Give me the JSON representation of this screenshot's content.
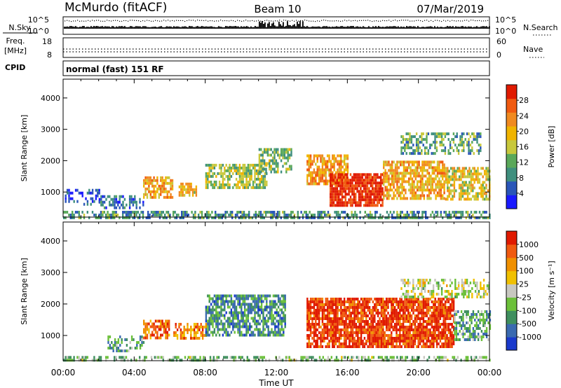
{
  "header": {
    "station": "McMurdo (fitACF)",
    "beam": "Beam 10",
    "date": "07/Mar/2019"
  },
  "status_panel": {
    "nsky_label": "N.Sky",
    "nsky_ticks": [
      "10^5",
      "10^0"
    ],
    "nsearch_label": "N.Search",
    "nsearch_ticks": [
      "10^5",
      "10^0"
    ],
    "freq_label_line1": "Freq.",
    "freq_label_line2": "[MHz]",
    "freq_ticks": [
      "18",
      "8"
    ],
    "nave_label": "Nave",
    "nave_ticks": [
      "60",
      "0"
    ],
    "cpid_label": "CPID",
    "cpid_text": "normal (fast) 151 RF"
  },
  "chart_data": [
    {
      "type": "heatmap",
      "panel": "power",
      "ylabel": "Slant Range [km]",
      "ylim": [
        200,
        4600
      ],
      "yticks": [
        "1000",
        "2000",
        "3000",
        "4000"
      ],
      "x_ticks": [
        "00:00",
        "04:00",
        "08:00",
        "12:00",
        "16:00",
        "20:00",
        "00:00"
      ],
      "colorbar_label": "Power [dB]",
      "colorbar_ticks": [
        "4",
        "8",
        "12",
        "16",
        "20",
        "24",
        "28"
      ],
      "colorscale": [
        "#1a1aff",
        "#2a56b8",
        "#3f8f7e",
        "#5aa85a",
        "#c8c83c",
        "#f0b400",
        "#f08a20",
        "#f05a10",
        "#e01a00"
      ],
      "regions": [
        {
          "t0": 0.0,
          "t1": 24.0,
          "r0": 200,
          "r1": 400,
          "level": 0.3,
          "density": 0.6
        },
        {
          "t0": 0.1,
          "t1": 2.0,
          "r0": 600,
          "r1": 1100,
          "level": 0.15,
          "density": 0.4
        },
        {
          "t0": 2.0,
          "t1": 4.5,
          "r0": 500,
          "r1": 900,
          "level": 0.2,
          "density": 0.5
        },
        {
          "t0": 4.5,
          "t1": 6.2,
          "r0": 800,
          "r1": 1500,
          "level": 0.65,
          "density": 0.75
        },
        {
          "t0": 6.5,
          "t1": 7.5,
          "r0": 900,
          "r1": 1300,
          "level": 0.6,
          "density": 0.7
        },
        {
          "t0": 8.0,
          "t1": 11.5,
          "r0": 1100,
          "r1": 1900,
          "level": 0.45,
          "density": 0.7
        },
        {
          "t0": 11.0,
          "t1": 12.8,
          "r0": 1600,
          "r1": 2400,
          "level": 0.4,
          "density": 0.6
        },
        {
          "t0": 13.7,
          "t1": 16.0,
          "r0": 1300,
          "r1": 2200,
          "level": 0.7,
          "density": 0.8
        },
        {
          "t0": 15.0,
          "t1": 18.0,
          "r0": 600,
          "r1": 1600,
          "level": 0.95,
          "density": 0.85
        },
        {
          "t0": 18.0,
          "t1": 21.5,
          "r0": 800,
          "r1": 2000,
          "level": 0.65,
          "density": 0.75
        },
        {
          "t0": 19.0,
          "t1": 23.5,
          "r0": 2200,
          "r1": 2900,
          "level": 0.35,
          "density": 0.5
        },
        {
          "t0": 21.5,
          "t1": 24.0,
          "r0": 800,
          "r1": 1800,
          "level": 0.55,
          "density": 0.65
        }
      ]
    },
    {
      "type": "heatmap",
      "panel": "velocity",
      "ylabel": "Slant Range [km]",
      "ylim": [
        200,
        4600
      ],
      "yticks": [
        "1000",
        "2000",
        "3000",
        "4000"
      ],
      "x_ticks": [
        "00:00",
        "04:00",
        "08:00",
        "12:00",
        "16:00",
        "20:00",
        "00:00"
      ],
      "xlabel": "Time UT",
      "colorbar_label": "Velocity [m s^-1]",
      "colorbar_ticks": [
        "1000",
        "500",
        "100",
        "25",
        "-25",
        "-100",
        "-500",
        "-1000"
      ],
      "colorscale": [
        "#1a3acc",
        "#3a6ab0",
        "#3f8f5e",
        "#6cc03a",
        "#c8c8c0",
        "#f0c000",
        "#f09000",
        "#f05a10",
        "#e01a00"
      ],
      "regions": [
        {
          "t0": 0.0,
          "t1": 24.0,
          "r0": 200,
          "r1": 350,
          "level": 0.4,
          "density": 0.5
        },
        {
          "t0": 2.5,
          "t1": 4.5,
          "r0": 500,
          "r1": 1000,
          "level": 0.3,
          "density": 0.5
        },
        {
          "t0": 4.5,
          "t1": 6.0,
          "r0": 900,
          "r1": 1500,
          "level": 0.8,
          "density": 0.7
        },
        {
          "t0": 6.2,
          "t1": 8.0,
          "r0": 900,
          "r1": 1400,
          "level": 0.75,
          "density": 0.6
        },
        {
          "t0": 8.0,
          "t1": 12.5,
          "r0": 1000,
          "r1": 2300,
          "level": 0.25,
          "density": 0.7
        },
        {
          "t0": 13.7,
          "t1": 22.0,
          "r0": 600,
          "r1": 2200,
          "level": 0.9,
          "density": 0.85
        },
        {
          "t0": 19.0,
          "t1": 24.0,
          "r0": 2200,
          "r1": 2800,
          "level": 0.5,
          "density": 0.5
        },
        {
          "t0": 22.0,
          "t1": 24.0,
          "r0": 900,
          "r1": 1800,
          "level": 0.3,
          "density": 0.6
        }
      ]
    }
  ]
}
